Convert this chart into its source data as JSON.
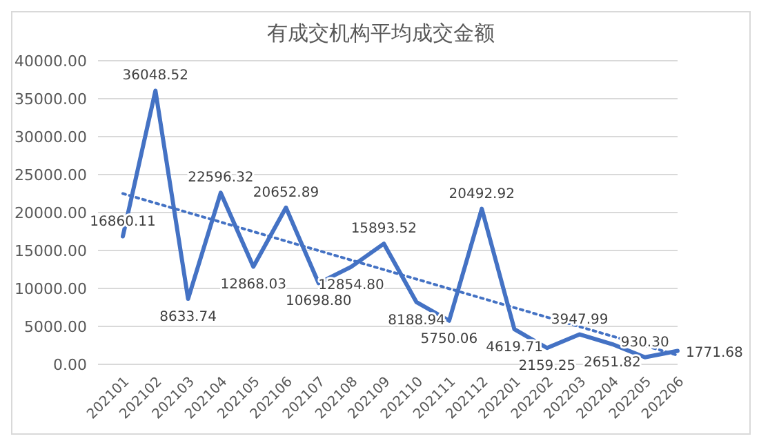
{
  "chart_data": {
    "type": "line",
    "title": "有成交机构平均成交金额",
    "categories": [
      "202101",
      "202102",
      "202103",
      "202104",
      "202105",
      "202106",
      "202107",
      "202108",
      "202109",
      "202110",
      "202111",
      "202112",
      "202201",
      "202202",
      "202203",
      "202204",
      "202205",
      "202206"
    ],
    "series": [
      {
        "color": "#4472c4",
        "values": [
          16860.11,
          36048.52,
          8633.74,
          22596.32,
          12868.03,
          20652.89,
          10698.8,
          12854.8,
          15893.52,
          8188.94,
          5750.06,
          20492.92,
          4619.71,
          2159.25,
          3947.99,
          2651.82,
          930.3,
          1771.68
        ],
        "value_labels": [
          "16860.11",
          "36048.52",
          "8633.74",
          "22596.32",
          "12868.03",
          "20652.89",
          "10698.80",
          "12854.80",
          "15893.52",
          "8188.94",
          "5750.06",
          "20492.92",
          "4619.71",
          "2159.25",
          "3947.99",
          "2651.82",
          "930.30",
          "1771.68"
        ]
      },
      {
        "type": "line",
        "line_style": "dotted",
        "color": "#4472c4",
        "values": [
          22500,
          null,
          null,
          null,
          null,
          null,
          null,
          null,
          null,
          null,
          null,
          null,
          null,
          null,
          null,
          null,
          null,
          1200
        ]
      }
    ],
    "ylim": [
      0,
      40000
    ],
    "yticks": [
      {
        "value": 0,
        "label": "0.00"
      },
      {
        "value": 5000,
        "label": "5000.00"
      },
      {
        "value": 10000,
        "label": "10000.00"
      },
      {
        "value": 15000,
        "label": "15000.00"
      },
      {
        "value": 20000,
        "label": "20000.00"
      },
      {
        "value": 25000,
        "label": "25000.00"
      },
      {
        "value": 30000,
        "label": "30000.00"
      },
      {
        "value": 35000,
        "label": "35000.00"
      },
      {
        "value": 40000,
        "label": "40000.00"
      }
    ],
    "grid": "y",
    "marker": "none",
    "line_style": "solid"
  }
}
